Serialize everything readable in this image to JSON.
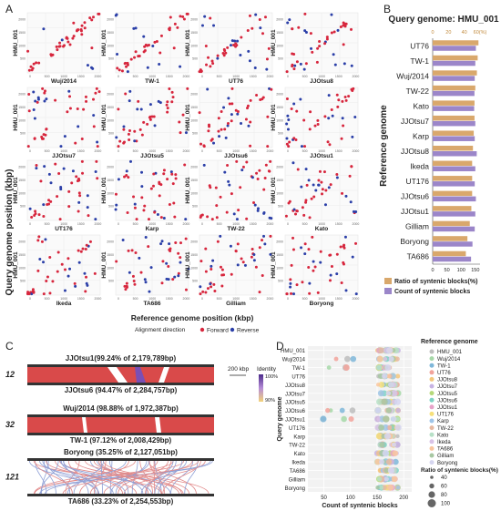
{
  "panel_letters": [
    "A",
    "B",
    "C",
    "D"
  ],
  "panelA": {
    "ylabel": "Query genome position (kbp)",
    "xlabel": "Reference genome position (kbp)",
    "query_label": "HMU_001",
    "legend_title": "Alignment direction",
    "legend_items": [
      {
        "label": "Forward",
        "color": "#d7263d"
      },
      {
        "label": "Reverse",
        "color": "#2b3fa8"
      }
    ],
    "subplots": [
      "Wuj/2014",
      "TW-1",
      "UT76",
      "JJOtsu8",
      "JJOtsu7",
      "JJOtsu5",
      "JJOtsu6",
      "JJOtsu1",
      "UT176",
      "Karp",
      "TW-22",
      "Kato",
      "Ikeda",
      "TA686",
      "Gilliam",
      "Boryong"
    ],
    "x_ticks": [
      "0",
      "500",
      "1000",
      "1500",
      "2000"
    ],
    "y_ticks": [
      "500",
      "1000",
      "1500",
      "2000"
    ]
  },
  "chart_data": [
    {
      "type": "bar",
      "title": "Query genome: HMU_001",
      "ylabel": "Reference genome",
      "top_axis_ticks": [
        "0",
        "20",
        "40",
        "60(%)"
      ],
      "bottom_axis_ticks": [
        "0",
        "50",
        "100",
        "150"
      ],
      "categories": [
        "UT76",
        "TW-1",
        "Wuj/2014",
        "TW-22",
        "Kato",
        "JJOtsu7",
        "Karp",
        "JJOtsu8",
        "Ikeda",
        "UT176",
        "JJOtsu6",
        "JJOtsu1",
        "Gilliam",
        "Boryong",
        "TA686"
      ],
      "series": [
        {
          "name": "Ratio of syntenic blocks(%)",
          "color": "#d9a86c",
          "values": [
            58,
            57,
            56,
            54,
            53,
            53,
            52,
            51,
            50,
            50,
            50,
            49,
            47,
            44,
            42
          ]
        },
        {
          "name": "Count of syntenic blocks",
          "color": "#9b86c9",
          "values": [
            152,
            150,
            148,
            147,
            146,
            150,
            148,
            155,
            150,
            148,
            152,
            150,
            148,
            140,
            135
          ]
        }
      ]
    },
    {
      "type": "scatter",
      "xlabel": "Count of syntenic blocks",
      "ylabel": "Query genome",
      "x_ticks": [
        50,
        100,
        150,
        200
      ],
      "xlim": [
        20,
        215
      ],
      "queries": [
        "HMU_001",
        "Wuj/2014",
        "TW-1",
        "UT76",
        "JJOtsu8",
        "JJOtsu7",
        "JJOtsu5",
        "JJOtsu6",
        "JJOtsu1",
        "UT176",
        "Karp",
        "TW-22",
        "Kato",
        "Ikeda",
        "TA686",
        "Gilliam",
        "Boryong"
      ],
      "legend_title": "Reference genome",
      "legend_items": [
        {
          "name": "HMU_001",
          "color": "#bdbdbd"
        },
        {
          "name": "Wuj/2014",
          "color": "#a6d8a8"
        },
        {
          "name": "TW-1",
          "color": "#7fb7d9"
        },
        {
          "name": "UT76",
          "color": "#f2a39b"
        },
        {
          "name": "JJOtsu8",
          "color": "#f4c77b"
        },
        {
          "name": "JJOtsu7",
          "color": "#c7b3e3"
        },
        {
          "name": "JJOtsu5",
          "color": "#b5d97b"
        },
        {
          "name": "JJOtsu6",
          "color": "#7fd3c5"
        },
        {
          "name": "JJOtsu1",
          "color": "#e7a3c9"
        },
        {
          "name": "UT176",
          "color": "#f6e07a"
        },
        {
          "name": "Karp",
          "color": "#9fc5e8"
        },
        {
          "name": "TW-22",
          "color": "#e6b9a1"
        },
        {
          "name": "Kato",
          "color": "#b7e0c7"
        },
        {
          "name": "Ikeda",
          "color": "#d9c2e6"
        },
        {
          "name": "TA686",
          "color": "#f9c59e"
        },
        {
          "name": "Gilliam",
          "color": "#a7c7a2"
        },
        {
          "name": "Boryong",
          "color": "#d6d6f0"
        }
      ],
      "size_legend_title": "Ratio of syntenic blocks(%)",
      "size_legend_values": [
        "40",
        "60",
        "80",
        "100"
      ]
    }
  ],
  "panelC": {
    "scale_label": "200 kbp",
    "identity_title": "Identity",
    "identity_max": "100%",
    "identity_min": "90%",
    "rows": [
      {
        "count": "12",
        "top": "JJOtsu1(99.24% of 2,179,789bp)",
        "bottom": "JJOtsu6 (94.47% of 2,284,757bp)"
      },
      {
        "count": "32",
        "top": "Wuj/2014 (98.88% of 1,972,387bp)",
        "bottom": "TW-1 (97.12% of 2,008,429bp)"
      },
      {
        "count": "121",
        "top": "Boryong (35.25% of 2,127,051bp)",
        "bottom": "TA686 (33.23% of 2,254,553bp)"
      }
    ]
  }
}
